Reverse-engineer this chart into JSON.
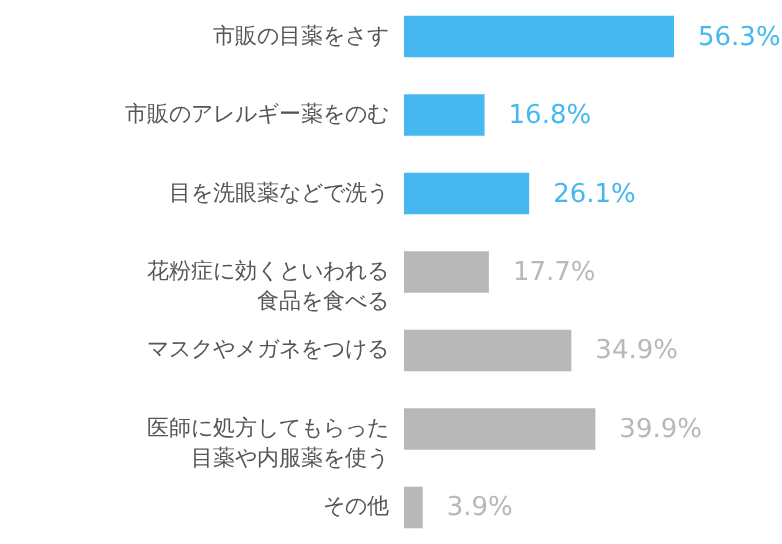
{
  "chart_data": {
    "type": "bar",
    "orientation": "horizontal",
    "categories": [
      "市販の目薬をさす",
      "市販のアレルギー薬をのむ",
      "目を洗眼薬などで洗う",
      "花粉症に効くといわれる食品を食べる",
      "マスクやメガネをつける",
      "医師に処方してもらった目薬や内服薬を使う",
      "その他"
    ],
    "values": [
      56.3,
      16.8,
      26.1,
      17.7,
      34.9,
      39.9,
      3.9
    ],
    "value_labels": [
      "56.3%",
      "16.8%",
      "26.1%",
      "17.7%",
      "34.9%",
      "39.9%",
      "3.9%"
    ],
    "colors": [
      "#45b8ef",
      "#45b8ef",
      "#45b8ef",
      "#b8b8b8",
      "#b8b8b8",
      "#b8b8b8",
      "#b8b8b8"
    ],
    "tick_labels": "y"
  }
}
